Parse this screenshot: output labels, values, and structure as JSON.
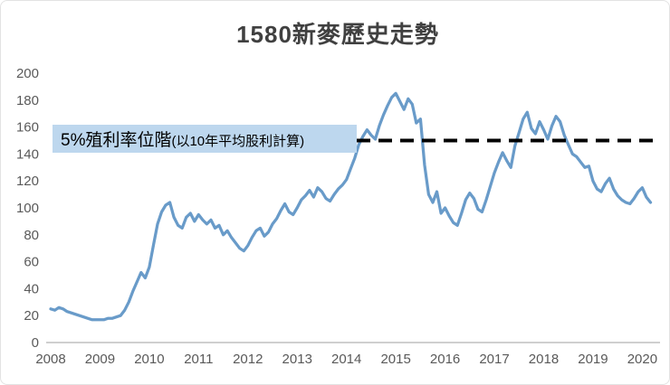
{
  "chart_data": {
    "type": "line",
    "title": "1580新麥歷史走勢",
    "x_start_year": 2008,
    "points_per_year": 12,
    "x_ticks": [
      2008,
      2009,
      2010,
      2011,
      2012,
      2013,
      2014,
      2015,
      2016,
      2017,
      2018,
      2019,
      2020
    ],
    "ylim": [
      0,
      200
    ],
    "y_ticks": [
      0,
      20,
      40,
      60,
      80,
      100,
      120,
      140,
      160,
      180,
      200
    ],
    "grid": false,
    "legend": "none",
    "series": [
      {
        "values": [
          25,
          24,
          26,
          25,
          23,
          22,
          21,
          20,
          19,
          18,
          17,
          17,
          17,
          17,
          18,
          18,
          19,
          20,
          24,
          30,
          38,
          45,
          52,
          48,
          56,
          72,
          88,
          97,
          102,
          104,
          93,
          87,
          85,
          93,
          96,
          90,
          95,
          91,
          88,
          91,
          85,
          87,
          80,
          83,
          78,
          74,
          70,
          68,
          72,
          78,
          83,
          85,
          79,
          82,
          88,
          92,
          98,
          103,
          97,
          95,
          100,
          106,
          109,
          113,
          108,
          115,
          112,
          107,
          105,
          110,
          114,
          117,
          121,
          129,
          137,
          147,
          153,
          158,
          154,
          151,
          161,
          169,
          176,
          182,
          185,
          179,
          173,
          181,
          177,
          163,
          166,
          132,
          110,
          104,
          112,
          96,
          100,
          94,
          89,
          87,
          96,
          106,
          111,
          107,
          99,
          97,
          106,
          116,
          126,
          134,
          141,
          135,
          130,
          146,
          156,
          166,
          171,
          159,
          155,
          164,
          158,
          151,
          161,
          168,
          164,
          154,
          147,
          140,
          138,
          134,
          130,
          131,
          120,
          114,
          112,
          118,
          122,
          114,
          109,
          106,
          104,
          103,
          107,
          112,
          115,
          108,
          104
        ]
      }
    ],
    "annotation": {
      "type": "hline",
      "y": 150,
      "style": "dashed",
      "label": "5%殖利率位階",
      "label_suffix": "(以10年平均股利計算)",
      "box_color": "#BDD7EE",
      "line_color": "#000000"
    },
    "colors": {
      "line": "#699BC9",
      "axis_text": "#595959",
      "title": "#404040",
      "axis_line": "#BFBFBF"
    }
  }
}
